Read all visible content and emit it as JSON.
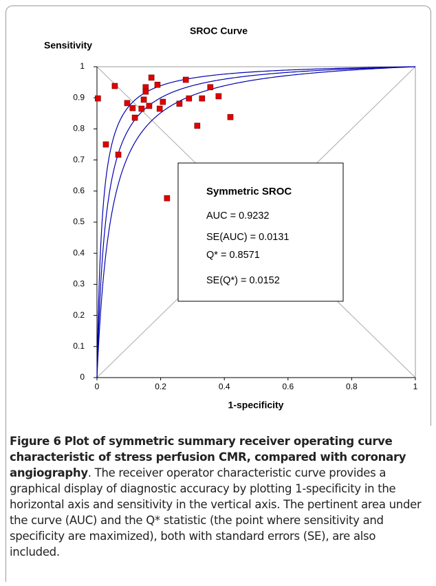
{
  "chart_data": {
    "type": "scatter",
    "title": "SROC Curve",
    "y_label": "Sensitivity",
    "x_label": "1-specificity",
    "x": [
      0.003,
      0.028,
      0.056,
      0.067,
      0.095,
      0.112,
      0.119,
      0.14,
      0.147,
      0.153,
      0.153,
      0.164,
      0.171,
      0.19,
      0.197,
      0.207,
      0.22,
      0.259,
      0.279,
      0.289,
      0.315,
      0.33,
      0.356,
      0.382,
      0.419
    ],
    "values": [
      0.898,
      0.75,
      0.938,
      0.717,
      0.883,
      0.867,
      0.836,
      0.865,
      0.894,
      0.934,
      0.92,
      0.874,
      0.965,
      0.942,
      0.865,
      0.887,
      0.577,
      0.881,
      0.958,
      0.898,
      0.81,
      0.898,
      0.934,
      0.905,
      0.838
    ],
    "color": "#e00000",
    "xlim": [
      0,
      1
    ],
    "ylim": [
      0,
      1
    ],
    "xticks": [
      0,
      0.2,
      0.4,
      0.6,
      0.8,
      1
    ],
    "yticks": [
      0,
      0.1,
      0.2,
      0.3,
      0.4,
      0.5,
      0.6,
      0.7,
      0.8,
      0.9,
      1
    ],
    "stats_title": "Symmetric SROC",
    "stats": [
      {
        "value": 0.9232,
        "label": "AUC = 0.9232"
      },
      {
        "value": 0.0131,
        "label": "SE(AUC) = 0.0131"
      },
      {
        "value": 0.8571,
        "label": "Q* = 0.8571"
      },
      {
        "value": 0.0152,
        "label": "SE(Q*) = 0.0152"
      }
    ],
    "curve_color": "#0000b0"
  },
  "caption": {
    "label": "Figure 6",
    "title": "Plot of symmetric summary receiver operating curve characteristic of stress perfusion CMR, compared with coronary angiography",
    "text": ". The receiver operator characteristic curve provides a graphical display of diagnostic accuracy by plotting 1-specificity in the horizontal axis and sensitivity in the vertical axis. The pertinent area under the curve (AUC) and the Q* statistic (the point where sensitivity and specificity are maximized), both with standard errors (SE), are also included."
  }
}
